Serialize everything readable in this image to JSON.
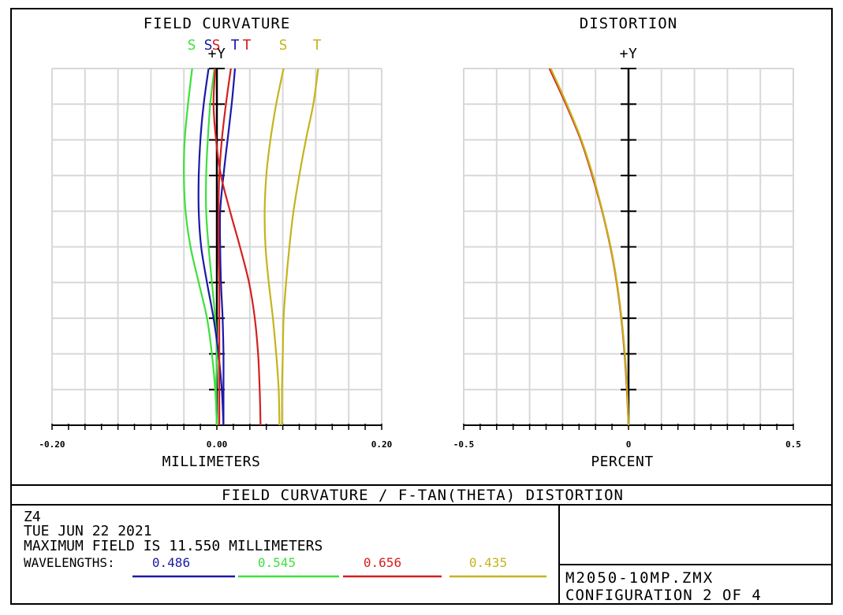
{
  "plot_title": "FIELD CURVATURE / F-TAN(THETA) DISTORTION",
  "info": {
    "lens_id": "Z4",
    "date": "TUE JUN 22 2021",
    "max_field": "MAXIMUM FIELD IS 11.550 MILLIMETERS",
    "wavelengths_label": "WAVELENGTHS:"
  },
  "wavelengths": [
    {
      "value": "0.486",
      "color": "#1a1aa8"
    },
    {
      "value": "0.545",
      "color": "#3ee03e"
    },
    {
      "value": "0.656",
      "color": "#d42020"
    },
    {
      "value": "0.435",
      "color": "#c4b41c"
    }
  ],
  "file": {
    "name": "M2050-10MP.ZMX",
    "config": "CONFIGURATION 2 OF 4"
  },
  "chart_data": [
    {
      "type": "line",
      "title": "FIELD CURVATURE",
      "xlabel": "MILLIMETERS",
      "ylabel": "+Y",
      "xlim": [
        -0.2,
        0.2
      ],
      "ylim": [
        0,
        1
      ],
      "x_tick_labels": [
        "-0.20",
        "0.00",
        "0.20"
      ],
      "grid": true,
      "legend_labels": [
        {
          "text": "S",
          "color": "#3ee03e"
        },
        {
          "text": "S",
          "color": "#1a1aa8"
        },
        {
          "text": "S",
          "color": "#d42020"
        },
        {
          "text": "T",
          "color": "#1a1aa8"
        },
        {
          "text": "T",
          "color": "#d42020"
        },
        {
          "text": "S",
          "color": "#c4b41c"
        },
        {
          "text": "T",
          "color": "#c4b41c"
        }
      ],
      "y": [
        0,
        0.1,
        0.2,
        0.3,
        0.4,
        0.5,
        0.6,
        0.7,
        0.8,
        0.9,
        1.0
      ],
      "series": [
        {
          "color": "#3ee03e",
          "x": [
            0.0,
            -0.002,
            -0.006,
            -0.012,
            -0.022,
            -0.032,
            -0.038,
            -0.04,
            -0.039,
            -0.035,
            -0.03
          ]
        },
        {
          "color": "#3ee03e",
          "x": [
            0.0,
            -0.001,
            0.0,
            -0.002,
            -0.006,
            -0.01,
            -0.013,
            -0.013,
            -0.011,
            -0.008,
            -0.003
          ]
        },
        {
          "color": "#1a1aa8",
          "x": [
            0.008,
            0.006,
            0.002,
            -0.004,
            -0.012,
            -0.019,
            -0.022,
            -0.022,
            -0.02,
            -0.016,
            -0.01
          ]
        },
        {
          "color": "#1a1aa8",
          "x": [
            0.008,
            0.008,
            0.008,
            0.007,
            0.005,
            0.004,
            0.004,
            0.008,
            0.013,
            0.018,
            0.022
          ]
        },
        {
          "color": "#d42020",
          "x": [
            0.053,
            0.052,
            0.05,
            0.046,
            0.039,
            0.028,
            0.016,
            0.005,
            -0.001,
            -0.004,
            -0.002
          ]
        },
        {
          "color": "#d42020",
          "x": [
            0.003,
            0.003,
            0.003,
            0.003,
            0.003,
            0.002,
            0.002,
            0.003,
            0.006,
            0.011,
            0.017
          ]
        },
        {
          "color": "#c4b41c",
          "x": [
            0.076,
            0.075,
            0.072,
            0.068,
            0.063,
            0.059,
            0.058,
            0.06,
            0.065,
            0.072,
            0.081
          ]
        },
        {
          "color": "#c4b41c",
          "x": [
            0.079,
            0.079,
            0.08,
            0.081,
            0.084,
            0.088,
            0.093,
            0.1,
            0.108,
            0.117,
            0.123
          ]
        }
      ]
    },
    {
      "type": "line",
      "title": "DISTORTION",
      "xlabel": "PERCENT",
      "ylabel": "+Y",
      "xlim": [
        -0.5,
        0.5
      ],
      "ylim": [
        0,
        1
      ],
      "x_tick_labels": [
        "-0.5",
        "0",
        "0.5"
      ],
      "grid": true,
      "y": [
        0,
        0.1,
        0.2,
        0.3,
        0.4,
        0.5,
        0.6,
        0.7,
        0.8,
        0.9,
        1.0
      ],
      "series": [
        {
          "color": "#d42020",
          "x": [
            0.0,
            -0.005,
            -0.012,
            -0.022,
            -0.036,
            -0.055,
            -0.08,
            -0.11,
            -0.145,
            -0.19,
            -0.24
          ]
        },
        {
          "color": "#c4b41c",
          "x": [
            0.0,
            -0.004,
            -0.011,
            -0.021,
            -0.035,
            -0.054,
            -0.079,
            -0.108,
            -0.143,
            -0.187,
            -0.236
          ]
        }
      ]
    }
  ]
}
